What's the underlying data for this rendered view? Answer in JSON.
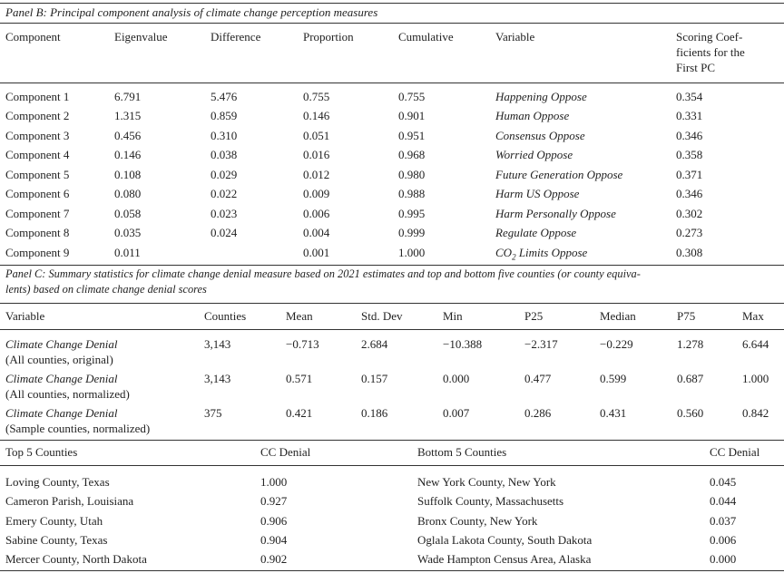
{
  "panel_b": {
    "title": "Panel B: Principal component analysis of climate change perception measures",
    "headers": {
      "component": "Component",
      "eigenvalue": "Eigenvalue",
      "difference": "Difference",
      "proportion": "Proportion",
      "cumulative": "Cumulative",
      "variable": "Variable",
      "scoring_line1": "Scoring Coef-",
      "scoring_line2": "ficients for the",
      "scoring_line3": "First PC"
    },
    "rows": [
      {
        "component": "Component 1",
        "eigenvalue": "6.791",
        "difference": "5.476",
        "proportion": "0.755",
        "cumulative": "0.755",
        "variable": "Happening Oppose",
        "variable_sub": "",
        "variable_tail": "",
        "scoring": "0.354"
      },
      {
        "component": "Component 2",
        "eigenvalue": "1.315",
        "difference": "0.859",
        "proportion": "0.146",
        "cumulative": "0.901",
        "variable": "Human Oppose",
        "variable_sub": "",
        "variable_tail": "",
        "scoring": "0.331"
      },
      {
        "component": "Component 3",
        "eigenvalue": "0.456",
        "difference": "0.310",
        "proportion": "0.051",
        "cumulative": "0.951",
        "variable": "Consensus Oppose",
        "variable_sub": "",
        "variable_tail": "",
        "scoring": "0.346"
      },
      {
        "component": "Component 4",
        "eigenvalue": "0.146",
        "difference": "0.038",
        "proportion": "0.016",
        "cumulative": "0.968",
        "variable": "Worried Oppose",
        "variable_sub": "",
        "variable_tail": "",
        "scoring": "0.358"
      },
      {
        "component": "Component 5",
        "eigenvalue": "0.108",
        "difference": "0.029",
        "proportion": "0.012",
        "cumulative": "0.980",
        "variable": "Future Generation Oppose",
        "variable_sub": "",
        "variable_tail": "",
        "scoring": "0.371"
      },
      {
        "component": "Component 6",
        "eigenvalue": "0.080",
        "difference": "0.022",
        "proportion": "0.009",
        "cumulative": "0.988",
        "variable": "Harm US Oppose",
        "variable_sub": "",
        "variable_tail": "",
        "scoring": "0.346"
      },
      {
        "component": "Component 7",
        "eigenvalue": "0.058",
        "difference": "0.023",
        "proportion": "0.006",
        "cumulative": "0.995",
        "variable": "Harm Personally Oppose",
        "variable_sub": "",
        "variable_tail": "",
        "scoring": "0.302"
      },
      {
        "component": "Component 8",
        "eigenvalue": "0.035",
        "difference": "0.024",
        "proportion": "0.004",
        "cumulative": "0.999",
        "variable": "Regulate Oppose",
        "variable_sub": "",
        "variable_tail": "",
        "scoring": "0.273"
      },
      {
        "component": "Component 9",
        "eigenvalue": "0.011",
        "difference": "",
        "proportion": "0.001",
        "cumulative": "1.000",
        "variable": "CO",
        "variable_sub": "2",
        "variable_tail": " Limits Oppose",
        "scoring": "0.308"
      }
    ]
  },
  "panel_c": {
    "title_line1": "Panel C: Summary statistics for climate change denial measure based on 2021 estimates and top and bottom five counties (or county equiva-",
    "title_line2": "lents) based on climate change denial scores",
    "headers": {
      "variable": "Variable",
      "counties": "Counties",
      "mean": "Mean",
      "std": "Std. Dev",
      "min": "Min",
      "p25": "P25",
      "median": "Median",
      "p75": "P75",
      "max": "Max"
    },
    "rows": [
      {
        "name": "Climate Change Denial",
        "sub": "(All counties, original)",
        "counties": "3,143",
        "mean": "−0.713",
        "std": "2.684",
        "min": "−10.388",
        "p25": "−2.317",
        "median": "−0.229",
        "p75": "1.278",
        "max": "6.644"
      },
      {
        "name": "Climate Change Denial",
        "sub": "(All counties, normalized)",
        "counties": "3,143",
        "mean": "0.571",
        "std": "0.157",
        "min": "0.000",
        "p25": "0.477",
        "median": "0.599",
        "p75": "0.687",
        "max": "1.000"
      },
      {
        "name": "Climate Change Denial",
        "sub": "(Sample counties, normalized)",
        "counties": "375",
        "mean": "0.421",
        "std": "0.186",
        "min": "0.007",
        "p25": "0.286",
        "median": "0.431",
        "p75": "0.560",
        "max": "0.842"
      }
    ],
    "counties_header": {
      "top": "Top 5 Counties",
      "top_cc": "CC Denial",
      "bottom": "Bottom 5 Counties",
      "bottom_cc": "CC Denial"
    },
    "counties": [
      {
        "top": "Loving County, Texas",
        "top_cc": "1.000",
        "bottom": "New York County, New York",
        "bottom_cc": "0.045"
      },
      {
        "top": "Cameron Parish, Louisiana",
        "top_cc": "0.927",
        "bottom": "Suffolk County, Massachusetts",
        "bottom_cc": "0.044"
      },
      {
        "top": "Emery County, Utah",
        "top_cc": "0.906",
        "bottom": "Bronx County, New York",
        "bottom_cc": "0.037"
      },
      {
        "top": "Sabine County, Texas",
        "top_cc": "0.904",
        "bottom": "Oglala Lakota County, South Dakota",
        "bottom_cc": "0.006"
      },
      {
        "top": "Mercer County, North Dakota",
        "top_cc": "0.902",
        "bottom": "Wade Hampton Census Area, Alaska",
        "bottom_cc": "0.000"
      }
    ]
  }
}
